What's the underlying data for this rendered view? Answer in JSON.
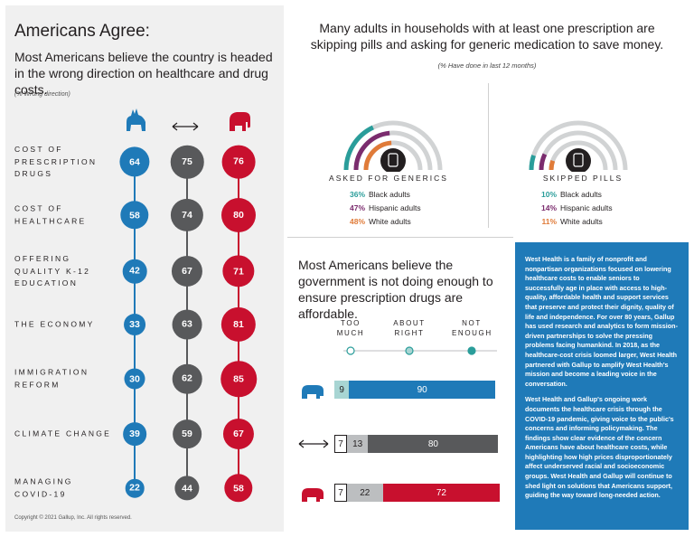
{
  "left": {
    "title": "Americans Agree:",
    "subtitle": "Most Americans believe the country is headed in the wrong direction on healthcare and drug costs.",
    "note": "(% Wrong direction)",
    "column_icons": [
      "donkey-icon",
      "left-right-arrow-icon",
      "elephant-icon"
    ],
    "issues": [
      {
        "label": "COST OF PRESCRIPTION DRUGS",
        "dem": "64",
        "ind": "75",
        "rep": "76"
      },
      {
        "label": "COST OF HEALTHCARE",
        "dem": "58",
        "ind": "74",
        "rep": "80"
      },
      {
        "label": "OFFERING QUALITY K-12 EDUCATION",
        "dem": "42",
        "ind": "67",
        "rep": "71"
      },
      {
        "label": "THE ECONOMY",
        "dem": "33",
        "ind": "63",
        "rep": "81"
      },
      {
        "label": "IMMIGRATION REFORM",
        "dem": "30",
        "ind": "62",
        "rep": "85"
      },
      {
        "label": "CLIMATE CHANGE",
        "dem": "39",
        "ind": "59",
        "rep": "67"
      },
      {
        "label": "MANAGING COVID-19",
        "dem": "22",
        "ind": "44",
        "rep": "58"
      }
    ],
    "copyright": "Copyright © 2021 Gallup, Inc. All rights reserved."
  },
  "colors": {
    "dem": "#1f7ab8",
    "ind": "#58595b",
    "rep": "#c8102e",
    "teal": "#2a9d9a",
    "purple": "#7b2c6e",
    "orange": "#e07b39",
    "light_teal": "#a8d5d3",
    "gray_bar": "#bcbec0"
  },
  "top_right": {
    "title": "Many adults in households with at least one prescription are skipping pills and asking for generic medication to save money.",
    "note": "(% Have done in last 12 months)",
    "groups": [
      {
        "heading": "ASKED FOR GENERICS",
        "icon": "pill-bottle-icon",
        "rows": [
          {
            "pct": "36%",
            "label": "Black adults",
            "value": 36
          },
          {
            "pct": "47%",
            "label": "Hispanic adults",
            "value": 47
          },
          {
            "pct": "48%",
            "label": "White adults",
            "value": 48
          }
        ]
      },
      {
        "heading": "SKIPPED PILLS",
        "icon": "pills-icon",
        "rows": [
          {
            "pct": "10%",
            "label": "Black adults",
            "value": 10
          },
          {
            "pct": "14%",
            "label": "Hispanic adults",
            "value": 14
          },
          {
            "pct": "11%",
            "label": "White adults",
            "value": 11
          }
        ]
      }
    ]
  },
  "bottom_middle": {
    "title": "Most Americans believe the government is not doing enough to ensure prescription drugs are affordable.",
    "options": [
      "TOO MUCH",
      "ABOUT RIGHT",
      "NOT ENOUGH"
    ],
    "bars": [
      {
        "icon": "donkey-icon",
        "segments": [
          "",
          "9",
          "90"
        ],
        "values": [
          0,
          9,
          90
        ]
      },
      {
        "icon": "left-right-arrow-icon",
        "segments": [
          "7",
          "13",
          "80"
        ],
        "values": [
          7,
          13,
          80
        ]
      },
      {
        "icon": "elephant-icon",
        "segments": [
          "7",
          "22",
          "72"
        ],
        "values": [
          7,
          22,
          72
        ]
      }
    ]
  },
  "info": {
    "p1": "West Health is a family of nonprofit and nonpartisan organizations focused on lowering healthcare costs to enable seniors to successfully age in place with access to high-quality, affordable health and support services that preserve and protect their dignity, quality of life and independence. For over 80 years, Gallup has used research and analytics to form mission-driven partnerships to solve the pressing problems facing humankind. In 2018, as the healthcare-cost crisis loomed larger, West Health partnered with Gallup to amplify West Health's mission and become a leading voice in the conversation.",
    "p2": "West Health and Gallup's ongoing work documents the healthcare crisis through the COVID-19 pandemic, giving voice to the public's concerns and informing policymaking. The findings show clear evidence of the concern Americans have about healthcare costs, while highlighting how high prices disproportionately affect underserved racial and socioeconomic groups. West Health and Gallup will continue to shed light on solutions that Americans support, guiding the way toward long-needed action."
  }
}
